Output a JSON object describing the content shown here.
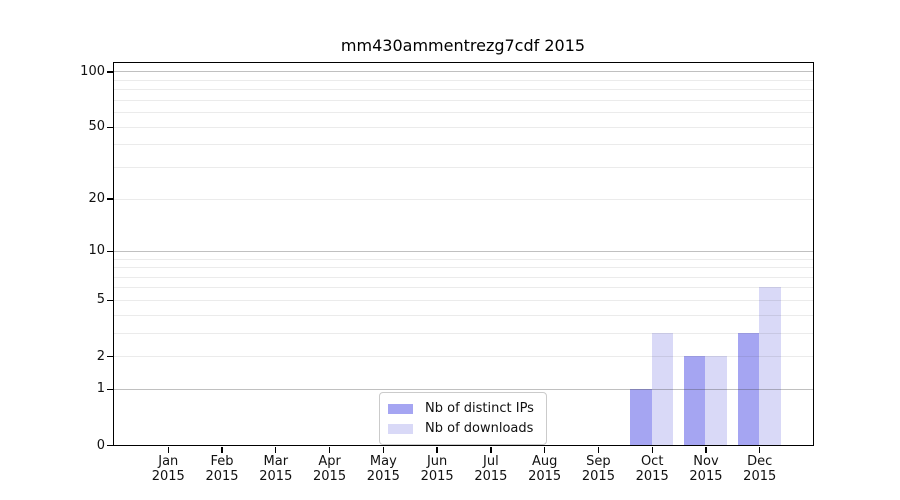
{
  "title": "mm430ammentrezg7cdf 2015",
  "legend": {
    "items": [
      {
        "label": "Nb of distinct IPs",
        "color": "#a5a5f2"
      },
      {
        "label": "Nb of downloads",
        "color": "#d9d9f7"
      }
    ]
  },
  "chart_data": {
    "type": "bar",
    "title": "mm430ammentrezg7cdf 2015",
    "categories": [
      "Jan",
      "Feb",
      "Mar",
      "Apr",
      "May",
      "Jun",
      "Jul",
      "Aug",
      "Sep",
      "Oct",
      "Nov",
      "Dec"
    ],
    "category_year": "2015",
    "series": [
      {
        "name": "Nb of distinct IPs",
        "color": "#a5a5f2",
        "values": [
          0,
          0,
          0,
          0,
          0,
          0,
          0,
          0,
          0,
          1,
          2,
          3
        ]
      },
      {
        "name": "Nb of downloads",
        "color": "#d9d9f7",
        "values": [
          0,
          0,
          0,
          0,
          0,
          0,
          0,
          0,
          0,
          3,
          2,
          6
        ]
      }
    ],
    "xlabel": "",
    "ylabel": "",
    "y_axis": {
      "scale": "log1p",
      "min": 0,
      "max": 111,
      "tick_values": [
        0,
        1,
        2,
        5,
        10,
        20,
        50,
        100
      ],
      "major_gridlines": [
        1,
        10,
        100
      ],
      "minor_gridlines": [
        2,
        3,
        4,
        5,
        6,
        7,
        8,
        9,
        20,
        30,
        40,
        50,
        60,
        70,
        80,
        90
      ]
    },
    "grid": "horizontal",
    "legend_position": "lower-center inside plot"
  }
}
